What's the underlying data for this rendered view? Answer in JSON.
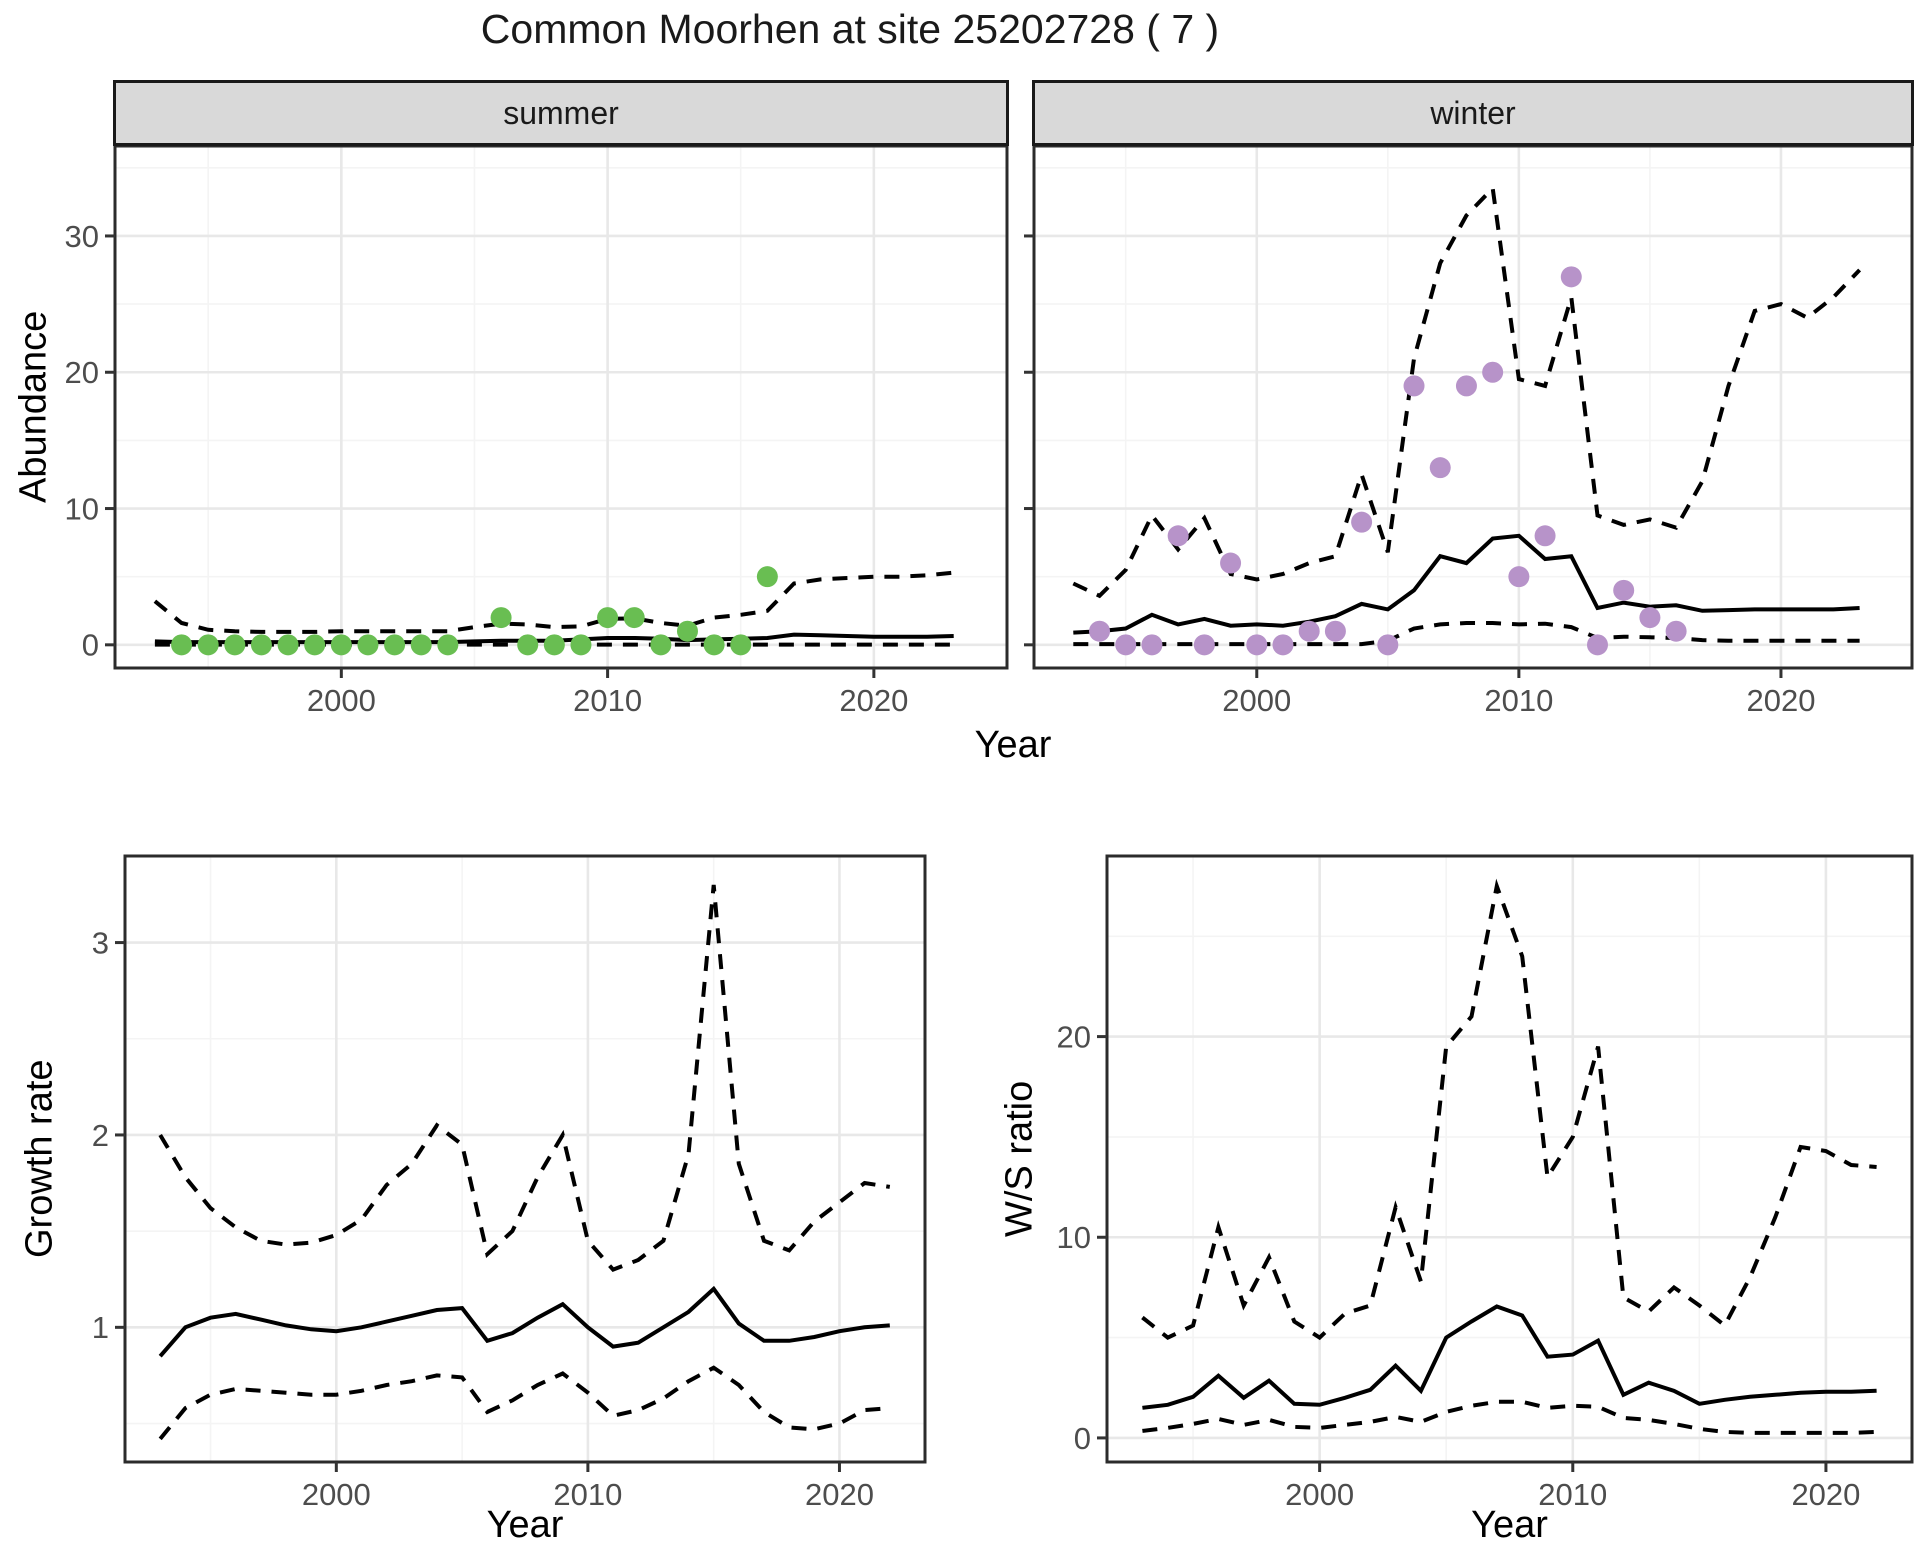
{
  "title": "Common Moorhen at site 25202728 ( 7 )",
  "colors": {
    "summer_point": "#69BE52",
    "winter_point": "#B793C9",
    "fit_line": "#000000",
    "strip_bg": "#D9D9D9",
    "strip_border": "#1A1A1A",
    "panel_border": "#2B2B2B",
    "grid_major": "#E8E8E8",
    "grid_minor": "#F4F4F4",
    "tick_text": "#4D4D4D",
    "tick_mark": "#333333"
  },
  "top_row": {
    "ylabel": "Abundance",
    "xlabel": "Year",
    "facets": [
      "summer",
      "winter"
    ],
    "xticks": [
      2000,
      2010,
      2020
    ],
    "yticks": [
      0,
      10,
      20,
      30
    ]
  },
  "bottom_row": {
    "growth_rate": {
      "ylabel": "Growth rate",
      "xlabel": "Year",
      "xticks": [
        2000,
        2010,
        2020
      ],
      "yticks": [
        1,
        2,
        3
      ]
    },
    "ws_ratio": {
      "ylabel": "W/S ratio",
      "xlabel": "Year",
      "xticks": [
        2000,
        2010,
        2020
      ],
      "yticks": [
        0,
        10,
        20
      ]
    }
  },
  "chart_data": [
    {
      "id": "abundance-summer",
      "type": "line",
      "facet": "summer",
      "xlabel": "Year",
      "ylabel": "Abundance",
      "xlim": [
        1991.5,
        2025.0
      ],
      "ylim": [
        -1.7,
        36.6
      ],
      "xticks": [
        2000,
        2010,
        2020
      ],
      "yticks": [
        0,
        10,
        20,
        30
      ],
      "year_start": 1993,
      "series": [
        {
          "name": "median_fit",
          "style": "solid",
          "values": [
            0.25,
            0.2,
            0.2,
            0.2,
            0.2,
            0.2,
            0.2,
            0.2,
            0.2,
            0.2,
            0.2,
            0.2,
            0.25,
            0.3,
            0.3,
            0.3,
            0.4,
            0.5,
            0.5,
            0.45,
            0.35,
            0.4,
            0.45,
            0.5,
            0.75,
            0.7,
            0.65,
            0.6,
            0.6,
            0.6,
            0.65
          ]
        },
        {
          "name": "upper_ci",
          "style": "dashed",
          "values": [
            3.2,
            1.6,
            1.1,
            1.0,
            0.95,
            0.95,
            0.95,
            1.0,
            1.0,
            1.0,
            1.0,
            1.0,
            1.3,
            1.55,
            1.5,
            1.3,
            1.35,
            1.9,
            1.95,
            1.6,
            1.4,
            2.0,
            2.2,
            2.5,
            4.5,
            4.8,
            4.9,
            5.0,
            5.0,
            5.1,
            5.3
          ]
        },
        {
          "name": "lower_ci",
          "style": "dashed",
          "values": [
            0.02,
            0.02,
            0.02,
            0.02,
            0.02,
            0.02,
            0.02,
            0.02,
            0.02,
            0.02,
            0.02,
            0.02,
            0.02,
            0.02,
            0.02,
            0.02,
            0.02,
            0.02,
            0.02,
            0.02,
            0.02,
            0.02,
            0.02,
            0.02,
            0.02,
            0.02,
            0.02,
            0.02,
            0.02,
            0.02,
            0.02
          ]
        }
      ],
      "points": {
        "name": "observed_summer_counts",
        "color": "#69BE52",
        "years": [
          1994,
          1995,
          1996,
          1997,
          1998,
          1999,
          2000,
          2001,
          2002,
          2003,
          2004,
          2006,
          2007,
          2008,
          2009,
          2010,
          2011,
          2012,
          2013,
          2014,
          2015,
          2016
        ],
        "values": [
          0,
          0,
          0,
          0,
          0,
          0,
          0,
          0,
          0,
          0,
          0,
          2,
          0,
          0,
          0,
          2,
          2,
          0,
          1,
          0,
          0,
          5
        ]
      }
    },
    {
      "id": "abundance-winter",
      "type": "line",
      "facet": "winter",
      "xlabel": "Year",
      "ylabel": "Abundance",
      "xlim": [
        1991.5,
        2025.0
      ],
      "ylim": [
        -1.7,
        36.6
      ],
      "xticks": [
        2000,
        2010,
        2020
      ],
      "yticks": [
        0,
        10,
        20,
        30
      ],
      "year_start": 1993,
      "series": [
        {
          "name": "median_fit",
          "style": "solid",
          "values": [
            0.9,
            1.0,
            1.2,
            2.2,
            1.5,
            1.9,
            1.4,
            1.5,
            1.4,
            1.7,
            2.1,
            3.0,
            2.6,
            4.0,
            6.5,
            6.0,
            7.8,
            8.0,
            6.3,
            6.5,
            2.7,
            3.1,
            2.8,
            2.9,
            2.5,
            2.55,
            2.6,
            2.6,
            2.6,
            2.6,
            2.7
          ]
        },
        {
          "name": "upper_ci",
          "style": "dashed",
          "values": [
            4.5,
            3.6,
            5.5,
            9.5,
            7.0,
            9.3,
            5.2,
            4.8,
            5.2,
            6.0,
            6.5,
            12.5,
            6.8,
            21,
            28,
            31.5,
            33.5,
            19.5,
            19.0,
            25.5,
            9.5,
            8.8,
            9.2,
            8.6,
            12,
            19,
            24.5,
            25,
            24,
            25.5,
            27.5
          ]
        },
        {
          "name": "lower_ci",
          "style": "dashed",
          "values": [
            0.05,
            0.05,
            0.05,
            0.05,
            0.05,
            0.05,
            0.05,
            0.05,
            0.05,
            0.05,
            0.05,
            0.05,
            0.3,
            1.2,
            1.5,
            1.6,
            1.6,
            1.5,
            1.55,
            1.3,
            0.5,
            0.6,
            0.55,
            0.5,
            0.35,
            0.3,
            0.3,
            0.3,
            0.3,
            0.3,
            0.3
          ]
        }
      ],
      "points": {
        "name": "observed_winter_counts",
        "color": "#B793C9",
        "years": [
          1994,
          1995,
          1996,
          1997,
          1998,
          1999,
          2000,
          2001,
          2002,
          2003,
          2004,
          2005,
          2006,
          2007,
          2008,
          2009,
          2010,
          2011,
          2012,
          2013,
          2014,
          2015,
          2016
        ],
        "values": [
          1,
          0,
          0,
          8,
          0,
          6,
          0,
          0,
          1,
          1,
          9,
          0,
          19,
          13,
          19,
          20,
          5,
          8,
          27,
          0,
          4,
          2,
          1
        ]
      }
    },
    {
      "id": "growth-rate",
      "type": "line",
      "xlabel": "Year",
      "ylabel": "Growth rate",
      "xlim": [
        1991.6,
        2023.4
      ],
      "ylim": [
        0.3,
        3.45
      ],
      "xticks": [
        2000,
        2010,
        2020
      ],
      "yticks": [
        1,
        2,
        3
      ],
      "year_start": 1993,
      "series": [
        {
          "name": "median_fit",
          "style": "solid",
          "values": [
            0.85,
            1.0,
            1.05,
            1.07,
            1.04,
            1.01,
            0.99,
            0.98,
            1.0,
            1.03,
            1.06,
            1.09,
            1.1,
            0.93,
            0.97,
            1.05,
            1.12,
            1.0,
            0.9,
            0.92,
            1.0,
            1.08,
            1.2,
            1.02,
            0.93,
            0.93,
            0.95,
            0.98,
            1.0,
            1.01
          ]
        },
        {
          "name": "upper_ci",
          "style": "dashed",
          "values": [
            2.0,
            1.78,
            1.62,
            1.52,
            1.45,
            1.43,
            1.44,
            1.48,
            1.56,
            1.74,
            1.85,
            2.05,
            1.95,
            1.38,
            1.5,
            1.78,
            2.0,
            1.45,
            1.3,
            1.35,
            1.45,
            1.9,
            3.3,
            1.85,
            1.45,
            1.4,
            1.55,
            1.65,
            1.75,
            1.73
          ]
        },
        {
          "name": "lower_ci",
          "style": "dashed",
          "values": [
            0.42,
            0.58,
            0.65,
            0.68,
            0.67,
            0.66,
            0.65,
            0.65,
            0.67,
            0.7,
            0.72,
            0.75,
            0.74,
            0.56,
            0.62,
            0.7,
            0.76,
            0.66,
            0.54,
            0.57,
            0.63,
            0.72,
            0.79,
            0.7,
            0.56,
            0.48,
            0.47,
            0.5,
            0.57,
            0.58
          ]
        }
      ]
    },
    {
      "id": "ws-ratio",
      "type": "line",
      "xlabel": "Year",
      "ylabel": "W/S ratio",
      "xlim": [
        1991.6,
        2023.4
      ],
      "ylim": [
        -1.2,
        29.0
      ],
      "xticks": [
        2000,
        2010,
        2020
      ],
      "yticks": [
        0,
        10,
        20
      ],
      "year_start": 1993,
      "series": [
        {
          "name": "median_fit",
          "style": "solid",
          "values": [
            1.5,
            1.65,
            2.05,
            3.1,
            2.0,
            2.85,
            1.7,
            1.65,
            2.0,
            2.4,
            3.6,
            2.35,
            5.0,
            5.8,
            6.55,
            6.1,
            4.05,
            4.15,
            4.85,
            2.15,
            2.75,
            2.35,
            1.7,
            1.9,
            2.05,
            2.15,
            2.25,
            2.3,
            2.3,
            2.35
          ]
        },
        {
          "name": "upper_ci",
          "style": "dashed",
          "values": [
            6.0,
            5.0,
            5.6,
            10.5,
            6.6,
            9.0,
            5.8,
            5.0,
            6.2,
            6.6,
            11.5,
            7.8,
            19.5,
            21,
            27.5,
            24,
            13,
            15,
            19.5,
            7.0,
            6.3,
            7.5,
            6.6,
            5.6,
            8.0,
            11,
            14.5,
            14.3,
            13.6,
            13.5
          ]
        },
        {
          "name": "lower_ci",
          "style": "dashed",
          "values": [
            0.35,
            0.5,
            0.7,
            0.95,
            0.65,
            0.9,
            0.55,
            0.5,
            0.65,
            0.8,
            1.05,
            0.8,
            1.3,
            1.6,
            1.8,
            1.8,
            1.5,
            1.6,
            1.55,
            1.0,
            0.9,
            0.7,
            0.45,
            0.3,
            0.25,
            0.25,
            0.25,
            0.25,
            0.25,
            0.3
          ]
        }
      ]
    }
  ]
}
